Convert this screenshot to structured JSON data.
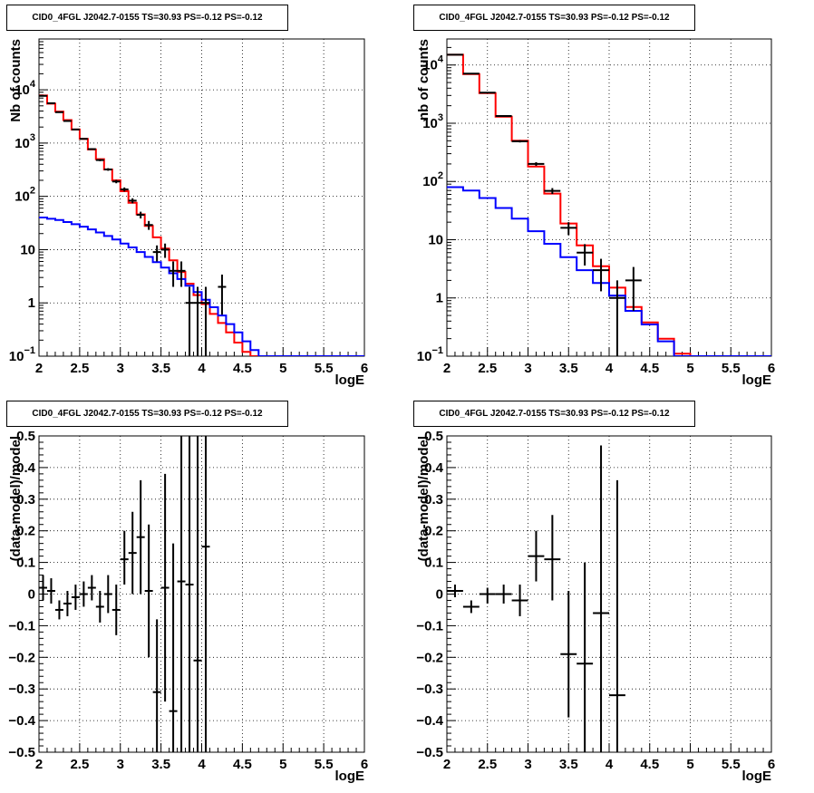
{
  "chart_data": [
    {
      "type": "line",
      "title": "CID0_4FGL J2042.7-0155 TS=30.93 PS=-0.12 PS=-0.12",
      "xlabel": "logE",
      "ylabel": "Nb of counts",
      "xlim": [
        2,
        6
      ],
      "ylim": [
        0.1,
        90000
      ],
      "yscale": "log",
      "grid": true,
      "x_ticks": [
        "2",
        "2.5",
        "3",
        "3.5",
        "4",
        "4.5",
        "5",
        "5.5",
        "6"
      ],
      "y_ticks": [
        {
          "value": 0.1,
          "label": "10",
          "exp": "−1"
        },
        {
          "value": 1,
          "label": "1",
          "exp": ""
        },
        {
          "value": 10,
          "label": "10",
          "exp": ""
        },
        {
          "value": 100,
          "label": "10",
          "exp": "2"
        },
        {
          "value": 1000,
          "label": "10",
          "exp": "3"
        },
        {
          "value": 10000,
          "label": "10",
          "exp": "4"
        }
      ],
      "bin_edges": [
        2.0,
        2.1,
        2.2,
        2.3,
        2.4,
        2.5,
        2.6,
        2.7,
        2.8,
        2.9,
        3.0,
        3.1,
        3.2,
        3.3,
        3.4,
        3.5,
        3.6,
        3.7,
        3.8,
        3.9,
        4.0,
        4.1,
        4.2,
        4.3,
        4.4,
        4.5,
        4.6,
        4.7,
        4.8,
        4.9,
        5.0,
        5.1,
        5.2,
        5.3,
        5.4,
        5.5,
        5.6,
        5.7,
        5.8,
        5.9,
        6.0
      ],
      "series": [
        {
          "name": "",
          "color": "#ff0000",
          "kind": "step",
          "values": [
            7800,
            5500,
            3900,
            2700,
            1800,
            1200,
            760,
            500,
            320,
            200,
            125,
            76,
            46,
            28,
            17,
            10.5,
            6.3,
            3.8,
            2.3,
            1.4,
            0.95,
            0.62,
            0.42,
            0.28,
            0.18,
            0.12,
            0.1,
            0.1,
            0.1,
            0.1,
            0.1,
            0.1,
            0.1,
            0.1,
            0.1,
            0.1,
            0.1,
            0.1,
            0.1,
            0.1
          ]
        },
        {
          "name": "",
          "color": "#0000ff",
          "kind": "step",
          "values": [
            40,
            38,
            36,
            33,
            30,
            27,
            24,
            21,
            18,
            15.5,
            13,
            11,
            9,
            7.3,
            5.8,
            4.6,
            3.6,
            2.8,
            2.1,
            1.6,
            1.15,
            0.83,
            0.58,
            0.4,
            0.28,
            0.19,
            0.13,
            0.1,
            0.1,
            0.1,
            0.1,
            0.1,
            0.1,
            0.1,
            0.1,
            0.1,
            0.1,
            0.1,
            0.1,
            0.1
          ]
        },
        {
          "name": "",
          "color": "#000000",
          "kind": "errorbar",
          "points": [
            {
              "x": 2.05,
              "y": 7700,
              "ylo": 7620,
              "yhi": 7780
            },
            {
              "x": 2.15,
              "y": 5600,
              "ylo": 5520,
              "yhi": 5680
            },
            {
              "x": 2.25,
              "y": 3800,
              "ylo": 3740,
              "yhi": 3860
            },
            {
              "x": 2.35,
              "y": 2600,
              "ylo": 2550,
              "yhi": 2650
            },
            {
              "x": 2.45,
              "y": 1800,
              "ylo": 1760,
              "yhi": 1840
            },
            {
              "x": 2.55,
              "y": 1200,
              "ylo": 1165,
              "yhi": 1235
            },
            {
              "x": 2.65,
              "y": 770,
              "ylo": 742,
              "yhi": 798
            },
            {
              "x": 2.75,
              "y": 480,
              "ylo": 458,
              "yhi": 502
            },
            {
              "x": 2.85,
              "y": 320,
              "ylo": 302,
              "yhi": 338
            },
            {
              "x": 2.95,
              "y": 190,
              "ylo": 176,
              "yhi": 204
            },
            {
              "x": 3.05,
              "y": 135,
              "ylo": 123,
              "yhi": 147
            },
            {
              "x": 3.15,
              "y": 83,
              "ylo": 74,
              "yhi": 92
            },
            {
              "x": 3.25,
              "y": 45,
              "ylo": 38.5,
              "yhi": 51.5
            },
            {
              "x": 3.35,
              "y": 29,
              "ylo": 23.5,
              "yhi": 34.5
            },
            {
              "x": 3.45,
              "y": 9,
              "ylo": 6,
              "yhi": 12
            },
            {
              "x": 3.55,
              "y": 10,
              "ylo": 7,
              "yhi": 13
            },
            {
              "x": 3.65,
              "y": 4,
              "ylo": 2,
              "yhi": 6
            },
            {
              "x": 3.75,
              "y": 4,
              "ylo": 2,
              "yhi": 6
            },
            {
              "x": 3.85,
              "y": 1,
              "ylo": 0.1,
              "yhi": 2
            },
            {
              "x": 3.95,
              "y": 1,
              "ylo": 0.1,
              "yhi": 2
            },
            {
              "x": 4.05,
              "y": 1,
              "ylo": 0.1,
              "yhi": 2
            },
            {
              "x": 4.25,
              "y": 2,
              "ylo": 0.6,
              "yhi": 3.4
            }
          ]
        }
      ]
    },
    {
      "type": "line",
      "title": "CID0_4FGL J2042.7-0155 TS=30.93 PS=-0.12 PS=-0.12",
      "xlabel": "logE",
      "ylabel": "nb of counts",
      "xlim": [
        2,
        6
      ],
      "ylim": [
        0.1,
        28000
      ],
      "yscale": "log",
      "grid": true,
      "x_ticks": [
        "2",
        "2.5",
        "3",
        "3.5",
        "4",
        "4.5",
        "5",
        "5.5",
        "6"
      ],
      "y_ticks": [
        {
          "value": 0.1,
          "label": "10",
          "exp": "−1"
        },
        {
          "value": 1,
          "label": "1",
          "exp": ""
        },
        {
          "value": 10,
          "label": "10",
          "exp": ""
        },
        {
          "value": 100,
          "label": "10",
          "exp": "2"
        },
        {
          "value": 1000,
          "label": "10",
          "exp": "3"
        },
        {
          "value": 10000,
          "label": "10",
          "exp": "4"
        }
      ],
      "bin_edges": [
        2.0,
        2.2,
        2.4,
        2.6,
        2.8,
        3.0,
        3.2,
        3.4,
        3.6,
        3.8,
        4.0,
        4.2,
        4.4,
        4.6,
        4.8,
        5.0,
        5.2,
        5.4,
        5.6,
        5.8,
        6.0
      ],
      "series": [
        {
          "name": "",
          "color": "#ff0000",
          "kind": "step",
          "values": [
            15000,
            7000,
            3300,
            1300,
            500,
            180,
            62,
            19,
            8,
            3.5,
            1.5,
            0.7,
            0.38,
            0.2,
            0.11,
            0.1,
            0.1,
            0.1,
            0.1,
            0.1
          ]
        },
        {
          "name": "",
          "color": "#0000ff",
          "kind": "step",
          "values": [
            80,
            70,
            52,
            35,
            23,
            14,
            8.5,
            5,
            3,
            1.8,
            1.1,
            0.6,
            0.35,
            0.18,
            0.1,
            0.1,
            0.1,
            0.1,
            0.1,
            0.1
          ]
        },
        {
          "name": "",
          "color": "#000000",
          "kind": "errorbar",
          "points": [
            {
              "x": 2.1,
              "y": 15000,
              "ylo": 14880,
              "yhi": 15120
            },
            {
              "x": 2.3,
              "y": 7100,
              "ylo": 7016,
              "yhi": 7184
            },
            {
              "x": 2.5,
              "y": 3350,
              "ylo": 3292,
              "yhi": 3408
            },
            {
              "x": 2.7,
              "y": 1330,
              "ylo": 1294,
              "yhi": 1366
            },
            {
              "x": 2.9,
              "y": 490,
              "ylo": 468,
              "yhi": 512
            },
            {
              "x": 3.1,
              "y": 200,
              "ylo": 186,
              "yhi": 214
            },
            {
              "x": 3.3,
              "y": 69,
              "ylo": 61,
              "yhi": 77
            },
            {
              "x": 3.5,
              "y": 16,
              "ylo": 12,
              "yhi": 20
            },
            {
              "x": 3.7,
              "y": 6,
              "ylo": 3.6,
              "yhi": 8.4
            },
            {
              "x": 3.9,
              "y": 3,
              "ylo": 1.3,
              "yhi": 4.7
            },
            {
              "x": 4.1,
              "y": 1,
              "ylo": 0.1,
              "yhi": 2
            },
            {
              "x": 4.3,
              "y": 2,
              "ylo": 0.6,
              "yhi": 3.4
            }
          ]
        }
      ]
    },
    {
      "type": "scatter",
      "title": "CID0_4FGL J2042.7-0155 TS=30.93 PS=-0.12 PS=-0.12",
      "xlabel": "logE",
      "ylabel": "(data-model)/model",
      "xlim": [
        2,
        6
      ],
      "ylim": [
        -0.5,
        0.5
      ],
      "grid": true,
      "x_ticks": [
        "2",
        "2.5",
        "3",
        "3.5",
        "4",
        "4.5",
        "5",
        "5.5",
        "6"
      ],
      "y_ticks": [
        "−0.5",
        "−0.4",
        "−0.3",
        "−0.2",
        "−0.1",
        "0",
        "0.1",
        "0.2",
        "0.3",
        "0.4",
        "0.5"
      ],
      "xerr": 0.05,
      "series": [
        {
          "name": "",
          "color": "#000000",
          "kind": "errorbar",
          "points": [
            {
              "x": 2.05,
              "y": 0.02,
              "ylo": -0.02,
              "yhi": 0.06
            },
            {
              "x": 2.15,
              "y": 0.01,
              "ylo": -0.03,
              "yhi": 0.05
            },
            {
              "x": 2.25,
              "y": -0.05,
              "ylo": -0.08,
              "yhi": -0.02
            },
            {
              "x": 2.35,
              "y": -0.03,
              "ylo": -0.07,
              "yhi": 0.01
            },
            {
              "x": 2.45,
              "y": -0.01,
              "ylo": -0.05,
              "yhi": 0.03
            },
            {
              "x": 2.55,
              "y": 0.0,
              "ylo": -0.04,
              "yhi": 0.04
            },
            {
              "x": 2.65,
              "y": 0.02,
              "ylo": -0.02,
              "yhi": 0.06
            },
            {
              "x": 2.75,
              "y": -0.04,
              "ylo": -0.09,
              "yhi": 0.01
            },
            {
              "x": 2.85,
              "y": 0.0,
              "ylo": -0.06,
              "yhi": 0.06
            },
            {
              "x": 2.95,
              "y": -0.05,
              "ylo": -0.13,
              "yhi": 0.03
            },
            {
              "x": 3.05,
              "y": 0.11,
              "ylo": 0.03,
              "yhi": 0.2
            },
            {
              "x": 3.15,
              "y": 0.13,
              "ylo": 0.0,
              "yhi": 0.26
            },
            {
              "x": 3.25,
              "y": 0.18,
              "ylo": 0.0,
              "yhi": 0.36
            },
            {
              "x": 3.35,
              "y": 0.01,
              "ylo": -0.2,
              "yhi": 0.22
            },
            {
              "x": 3.45,
              "y": -0.31,
              "ylo": -0.5,
              "yhi": -0.08
            },
            {
              "x": 3.55,
              "y": 0.02,
              "ylo": -0.34,
              "yhi": 0.38
            },
            {
              "x": 3.65,
              "y": -0.37,
              "ylo": -0.5,
              "yhi": 0.16
            },
            {
              "x": 3.75,
              "y": 0.04,
              "ylo": -0.5,
              "yhi": 0.5
            },
            {
              "x": 3.85,
              "y": 0.03,
              "ylo": -0.5,
              "yhi": 0.5
            },
            {
              "x": 3.95,
              "y": -0.21,
              "ylo": -0.5,
              "yhi": 0.5
            },
            {
              "x": 4.05,
              "y": 0.15,
              "ylo": -0.5,
              "yhi": 0.5
            }
          ]
        }
      ]
    },
    {
      "type": "scatter",
      "title": "CID0_4FGL J2042.7-0155 TS=30.93 PS=-0.12 PS=-0.12",
      "xlabel": "logE",
      "ylabel": "(data-model)/model",
      "xlim": [
        2,
        6
      ],
      "ylim": [
        -0.5,
        0.5
      ],
      "grid": true,
      "x_ticks": [
        "2",
        "2.5",
        "3",
        "3.5",
        "4",
        "4.5",
        "5",
        "5.5",
        "6"
      ],
      "y_ticks": [
        "−0.5",
        "−0.4",
        "−0.3",
        "−0.2",
        "−0.1",
        "0",
        "0.1",
        "0.2",
        "0.3",
        "0.4",
        "0.5"
      ],
      "xerr": 0.1,
      "series": [
        {
          "name": "",
          "color": "#000000",
          "kind": "errorbar",
          "points": [
            {
              "x": 2.1,
              "y": 0.01,
              "ylo": -0.01,
              "yhi": 0.03
            },
            {
              "x": 2.3,
              "y": -0.04,
              "ylo": -0.06,
              "yhi": -0.02
            },
            {
              "x": 2.5,
              "y": 0.0,
              "ylo": -0.03,
              "yhi": 0.02
            },
            {
              "x": 2.7,
              "y": 0.0,
              "ylo": -0.03,
              "yhi": 0.03
            },
            {
              "x": 2.9,
              "y": -0.02,
              "ylo": -0.07,
              "yhi": 0.03
            },
            {
              "x": 3.1,
              "y": 0.12,
              "ylo": 0.04,
              "yhi": 0.2
            },
            {
              "x": 3.3,
              "y": 0.11,
              "ylo": -0.02,
              "yhi": 0.25
            },
            {
              "x": 3.5,
              "y": -0.19,
              "ylo": -0.39,
              "yhi": 0.01
            },
            {
              "x": 3.7,
              "y": -0.22,
              "ylo": -0.5,
              "yhi": 0.1
            },
            {
              "x": 3.9,
              "y": -0.06,
              "ylo": -0.5,
              "yhi": 0.47
            },
            {
              "x": 4.1,
              "y": -0.32,
              "ylo": -0.5,
              "yhi": 0.36
            }
          ]
        }
      ]
    }
  ]
}
